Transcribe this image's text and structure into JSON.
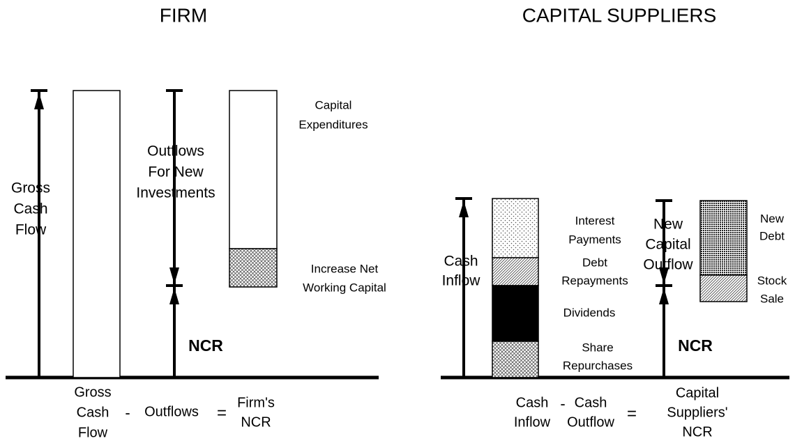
{
  "firm": {
    "title": "FIRM",
    "gross_cash_flow": [
      "Gross",
      "Cash",
      "Flow"
    ],
    "outflows_label": [
      "Outflows",
      "For New",
      "Investments"
    ],
    "ncr": "NCR",
    "capital_expenditures": [
      "Capital",
      "Expenditures"
    ],
    "increase_nwc": [
      "Increase Net",
      "Working Capital"
    ],
    "equation": {
      "term1": [
        "Gross",
        "Cash",
        "Flow"
      ],
      "minus": "-",
      "term2": [
        "Outflows"
      ],
      "equals": "=",
      "result": [
        "Firm's",
        "NCR"
      ]
    }
  },
  "capital_suppliers": {
    "title": "CAPITAL SUPPLIERS",
    "cash_inflow": [
      "Cash",
      "Inflow"
    ],
    "interest_payments": [
      "Interest",
      "Payments"
    ],
    "debt_repayments": [
      "Debt",
      "Repayments"
    ],
    "dividends": [
      "Dividends"
    ],
    "share_repurchases": [
      "Share",
      "Repurchases"
    ],
    "new_capital_outflow": [
      "New",
      "Capital",
      "Outflow"
    ],
    "ncr": "NCR",
    "new_debt": [
      "New",
      "Debt"
    ],
    "stock_sale": [
      "Stock",
      "Sale"
    ],
    "equation": {
      "term1": [
        "Cash",
        "Inflow"
      ],
      "minus": "-",
      "term2": [
        "Cash",
        "Outflow"
      ],
      "equals": "=",
      "result": [
        "Capital",
        "Suppliers'",
        "NCR"
      ]
    }
  }
}
